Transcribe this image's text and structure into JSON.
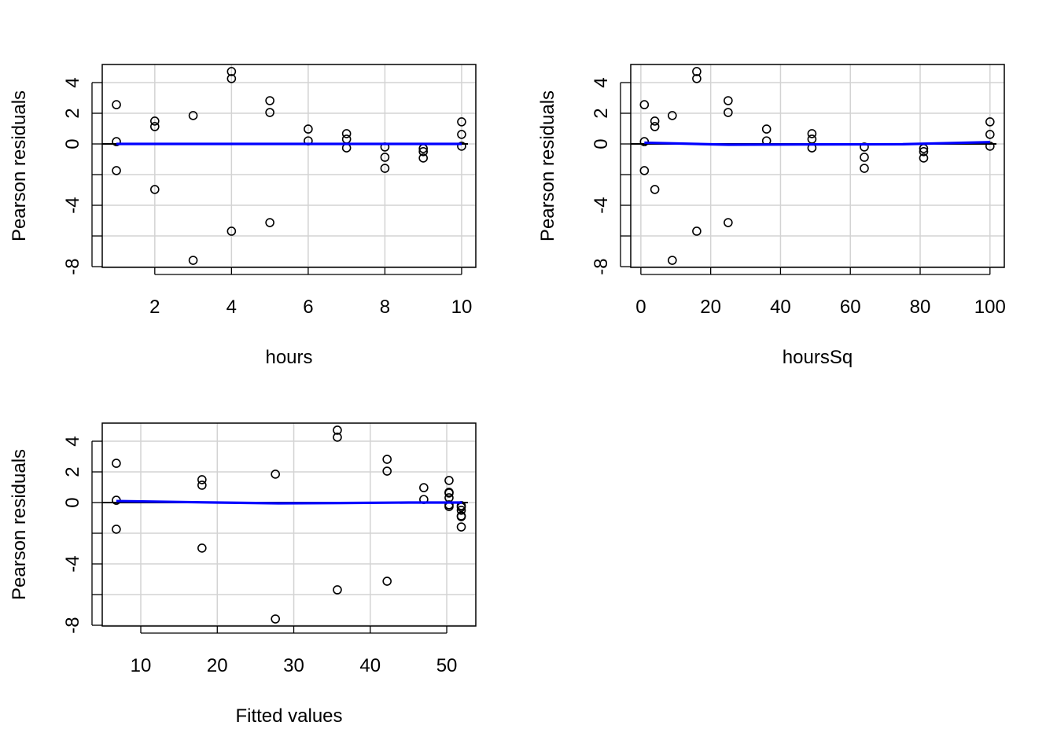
{
  "chart_data": [
    {
      "type": "scatter",
      "xlabel": "hours",
      "ylabel": "Pearson residuals",
      "xlim": [
        0.63,
        10.37
      ],
      "ylim": [
        -8.05,
        5.18
      ],
      "xticks": [
        2,
        4,
        6,
        8,
        10
      ],
      "yticks": [
        -8,
        -6,
        -4,
        -2,
        0,
        2,
        4
      ],
      "ytick_labels": [
        -8,
        -4,
        0,
        2,
        4
      ],
      "grid": true,
      "point_color": "#000000",
      "smooth_color": "#0000ff",
      "x": [
        1,
        1,
        1,
        2,
        2,
        2,
        3,
        3,
        4,
        4,
        4,
        5,
        5,
        5,
        6,
        6,
        7,
        7,
        7,
        8,
        8,
        8,
        9,
        9,
        9,
        10,
        10,
        10
      ],
      "y": [
        2.56,
        0.15,
        -1.74,
        1.49,
        1.13,
        -2.97,
        1.85,
        -7.59,
        4.72,
        4.26,
        -5.69,
        2.82,
        2.05,
        -5.13,
        0.97,
        0.2,
        0.67,
        0.31,
        -0.26,
        -0.2,
        -0.87,
        -1.59,
        -0.3,
        -0.5,
        -0.92,
        1.44,
        0.62,
        -0.15
      ],
      "smooth": {
        "x": [
          1,
          10
        ],
        "y": [
          0.0,
          0.0
        ]
      }
    },
    {
      "type": "scatter",
      "xlabel": "hoursSq",
      "ylabel": "Pearson residuals",
      "xlim": [
        -2.9,
        104.1
      ],
      "ylim": [
        -8.05,
        5.18
      ],
      "xticks": [
        0,
        20,
        40,
        60,
        80,
        100
      ],
      "yticks": [
        -8,
        -6,
        -4,
        -2,
        0,
        2,
        4
      ],
      "ytick_labels": [
        -8,
        -4,
        0,
        2,
        4
      ],
      "grid": true,
      "point_color": "#000000",
      "smooth_color": "#0000ff",
      "x": [
        1,
        1,
        1,
        4,
        4,
        4,
        9,
        9,
        16,
        16,
        16,
        25,
        25,
        25,
        36,
        36,
        49,
        49,
        49,
        64,
        64,
        64,
        81,
        81,
        81,
        100,
        100,
        100
      ],
      "y": [
        2.56,
        0.15,
        -1.74,
        1.49,
        1.13,
        -2.97,
        1.85,
        -7.59,
        4.72,
        4.26,
        -5.69,
        2.82,
        2.05,
        -5.13,
        0.97,
        0.2,
        0.67,
        0.31,
        -0.26,
        -0.2,
        -0.87,
        -1.59,
        -0.3,
        -0.5,
        -0.92,
        1.44,
        0.62,
        -0.15
      ],
      "smooth": {
        "x": [
          1,
          25,
          50,
          75,
          100
        ],
        "y": [
          0.08,
          -0.05,
          -0.03,
          -0.02,
          0.12
        ]
      }
    },
    {
      "type": "scatter",
      "xlabel": "Fitted values",
      "ylabel": "Pearson residuals",
      "xlim": [
        4.96,
        53.8
      ],
      "ylim": [
        -8.05,
        5.18
      ],
      "xticks": [
        10,
        20,
        30,
        40,
        50
      ],
      "yticks": [
        -8,
        -6,
        -4,
        -2,
        0,
        2,
        4
      ],
      "ytick_labels": [
        -8,
        -4,
        0,
        2,
        4
      ],
      "grid": true,
      "point_color": "#000000",
      "smooth_color": "#0000ff",
      "x": [
        6.8,
        6.8,
        6.8,
        18.0,
        18.0,
        18.0,
        27.6,
        27.6,
        35.7,
        35.7,
        35.7,
        42.2,
        42.2,
        42.2,
        47.0,
        47.0,
        50.3,
        50.3,
        50.3,
        51.9,
        51.9,
        51.9,
        51.9,
        51.9,
        51.9,
        50.3,
        50.3,
        50.3
      ],
      "y": [
        2.56,
        0.15,
        -1.74,
        1.49,
        1.13,
        -2.97,
        1.85,
        -7.59,
        4.72,
        4.26,
        -5.69,
        2.82,
        2.05,
        -5.13,
        0.97,
        0.2,
        0.67,
        0.31,
        -0.26,
        -0.2,
        -0.87,
        -1.59,
        -0.3,
        -0.5,
        -0.92,
        1.44,
        0.62,
        -0.15
      ],
      "smooth": {
        "x": [
          6.8,
          20,
          28,
          36,
          45,
          52
        ],
        "y": [
          0.1,
          0.0,
          -0.05,
          -0.03,
          0.0,
          0.0
        ]
      }
    }
  ]
}
